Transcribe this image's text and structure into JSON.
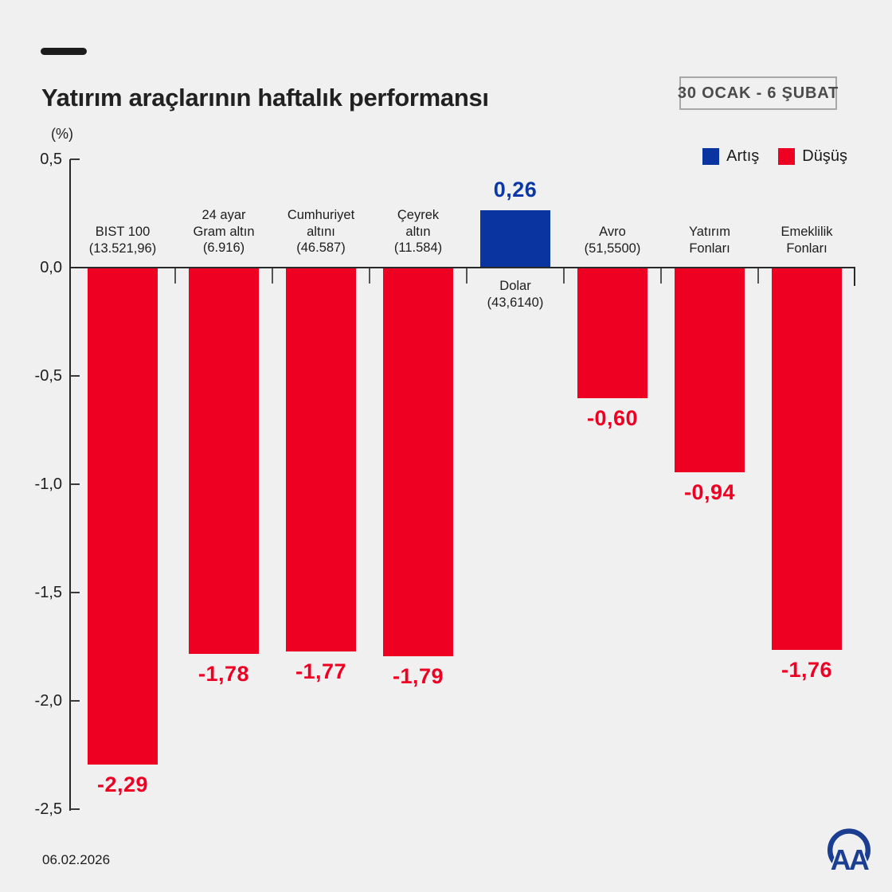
{
  "header": {
    "title": "Yatırım araçlarının haftalık performansı",
    "period_badge": "30 OCAK - 6 ŞUBAT"
  },
  "legend": {
    "items": [
      {
        "label": "Artış",
        "role": "positive"
      },
      {
        "label": "Düşüş",
        "role": "negative"
      }
    ]
  },
  "colors": {
    "positive": "#0a35a0",
    "negative": "#ee0022",
    "value_text_positive": "#0b38a5",
    "value_text_negative": "#ee0022",
    "logo_blue": "#1b3e91",
    "axis": "#2a2a2a",
    "background": "#f0f0f1"
  },
  "footer": {
    "date": "06.02.2026",
    "logo_text": "AA"
  },
  "chart_data": {
    "type": "bar",
    "title": "Yatırım araçlarının haftalık performansı",
    "period": "30 OCAK - 6 ŞUBAT",
    "unit_label": "(%)",
    "xlabel": "",
    "ylabel": "(%)",
    "ylim": [
      -2.5,
      0.5
    ],
    "yticks": [
      0.5,
      0,
      -0.5,
      -1,
      -1.5,
      -2,
      -2.5
    ],
    "ytick_labels": [
      "0,5",
      "0,0",
      "-0,5",
      "-1,0",
      "-1,5",
      "-2,0",
      "-2,5"
    ],
    "grid": false,
    "legend_position": "top-right",
    "legend_entries": [
      "Artış",
      "Düşüş"
    ],
    "categories": [
      "BIST 100",
      "24 ayar Gram altın",
      "Cumhuriyet altını",
      "Çeyrek altın",
      "Dolar",
      "Avro",
      "Yatırım Fonları",
      "Emeklilik Fonları"
    ],
    "values": [
      -2.29,
      -1.78,
      -1.77,
      -1.79,
      0.26,
      -0.6,
      -0.94,
      -1.76
    ],
    "bars": [
      {
        "label_lines": [
          "BIST 100",
          "(13.521,96)"
        ],
        "value": -2.29,
        "value_label": "-2,29"
      },
      {
        "label_lines": [
          "24 ayar",
          "Gram altın",
          "(6.916)"
        ],
        "value": -1.78,
        "value_label": "-1,78"
      },
      {
        "label_lines": [
          "Cumhuriyet",
          "altını",
          "(46.587)"
        ],
        "value": -1.77,
        "value_label": "-1,77"
      },
      {
        "label_lines": [
          "Çeyrek",
          "altın",
          "(11.584)"
        ],
        "value": -1.79,
        "value_label": "-1,79"
      },
      {
        "label_lines": [
          "Dolar",
          "(43,6140)"
        ],
        "value": 0.26,
        "value_label": "0,26"
      },
      {
        "label_lines": [
          "Avro",
          "(51,5500)"
        ],
        "value": -0.6,
        "value_label": "-0,60"
      },
      {
        "label_lines": [
          "Yatırım",
          "Fonları"
        ],
        "value": -0.94,
        "value_label": "-0,94"
      },
      {
        "label_lines": [
          "Emeklilik",
          "Fonları"
        ],
        "value": -1.76,
        "value_label": "-1,76"
      }
    ]
  }
}
